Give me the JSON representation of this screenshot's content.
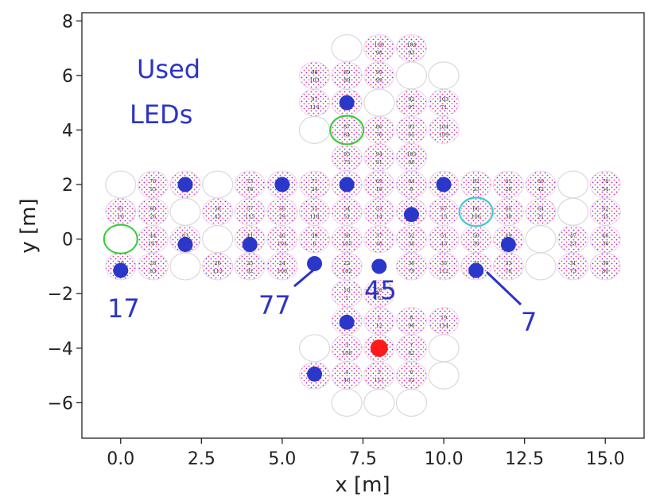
{
  "chart_data": {
    "type": "scatter",
    "title": "",
    "xlabel": "x [m]",
    "ylabel": "y [m]",
    "xlim": [
      -1.2,
      16.2
    ],
    "ylim": [
      -7.3,
      8.3
    ],
    "xticks": [
      0.0,
      2.5,
      5.0,
      7.5,
      10.0,
      12.5,
      15.0
    ],
    "xtick_labels": [
      "0.0",
      "2.5",
      "5.0",
      "7.5",
      "10.0",
      "12.5",
      "15.0"
    ],
    "yticks": [
      -6,
      -4,
      -2,
      0,
      2,
      4,
      6,
      8
    ],
    "ytick_labels": [
      "−6",
      "−4",
      "−2",
      "0",
      "2",
      "4",
      "6",
      "8"
    ],
    "grid": false,
    "colors": {
      "used_led": "#2a37c9",
      "red_marker": "#ff1a1a",
      "green_ring": "#33cc33",
      "cyan_ring": "#33cccc",
      "annotation": "#2b34c6",
      "empty_site": "#d9d9d9",
      "dot_purple": "#8a2be2",
      "dot_red": "#ff3366"
    },
    "labeled_sites": [
      {
        "x": 8,
        "y": 7,
        "top": "100",
        "bottom": "98"
      },
      {
        "x": 9,
        "y": 7,
        "top": "104",
        "bottom": "93"
      },
      {
        "x": 6,
        "y": 6,
        "top": "98",
        "bottom": "103"
      },
      {
        "x": 7,
        "y": 6,
        "top": "89",
        "bottom": "89"
      },
      {
        "x": 8,
        "y": 6,
        "top": "99",
        "bottom": "99"
      },
      {
        "x": 6,
        "y": 5,
        "top": "97",
        "bottom": "114"
      },
      {
        "x": 7,
        "y": 5,
        "top": "",
        "bottom": ""
      },
      {
        "x": 9,
        "y": 5,
        "top": "92",
        "bottom": "97"
      },
      {
        "x": 10,
        "y": 5,
        "top": "103",
        "bottom": "71"
      },
      {
        "x": 7,
        "y": 4,
        "top": "87",
        "bottom": "84"
      },
      {
        "x": 8,
        "y": 4,
        "top": "86",
        "bottom": "76"
      },
      {
        "x": 9,
        "y": 4,
        "top": "93",
        "bottom": "65"
      },
      {
        "x": 10,
        "y": 4,
        "top": "104",
        "bottom": "109"
      },
      {
        "x": 7,
        "y": 3,
        "top": "95",
        "bottom": "73"
      },
      {
        "x": 8,
        "y": 3,
        "top": "94",
        "bottom": "91"
      },
      {
        "x": 9,
        "y": 3,
        "top": "105",
        "bottom": "86"
      },
      {
        "x": 1,
        "y": 2,
        "top": "76",
        "bottom": "55"
      },
      {
        "x": 2,
        "y": 2,
        "top": "",
        "bottom": ""
      },
      {
        "x": 4,
        "y": 2,
        "top": "73",
        "bottom": "16"
      },
      {
        "x": 5,
        "y": 2,
        "top": "",
        "bottom": ""
      },
      {
        "x": 6,
        "y": 2,
        "top": "71",
        "bottom": "24"
      },
      {
        "x": 7,
        "y": 2,
        "top": "",
        "bottom": ""
      },
      {
        "x": 8,
        "y": 2,
        "top": "69",
        "bottom": "18"
      },
      {
        "x": 9,
        "y": 2,
        "top": "84",
        "bottom": "8"
      },
      {
        "x": 10,
        "y": 2,
        "top": "",
        "bottom": ""
      },
      {
        "x": 11,
        "y": 2,
        "top": "82",
        "bottom": "23"
      },
      {
        "x": 12,
        "y": 2,
        "top": "81",
        "bottom": "20"
      },
      {
        "x": 13,
        "y": 2,
        "top": "80",
        "bottom": "42"
      },
      {
        "x": 15,
        "y": 2,
        "top": "78",
        "bottom": "54"
      },
      {
        "x": 0,
        "y": 1,
        "top": "61",
        "bottom": "10"
      },
      {
        "x": 1,
        "y": 1,
        "top": "60",
        "bottom": "26"
      },
      {
        "x": 3,
        "y": 1,
        "top": "58",
        "bottom": "45"
      },
      {
        "x": 4,
        "y": 1,
        "top": "57",
        "bottom": "115"
      },
      {
        "x": 5,
        "y": 1,
        "top": "56",
        "bottom": "29"
      },
      {
        "x": 6,
        "y": 1,
        "top": "55",
        "bottom": "118"
      },
      {
        "x": 7,
        "y": 1,
        "top": "54",
        "bottom": "51"
      },
      {
        "x": 8,
        "y": 1,
        "top": "53",
        "bottom": "14"
      },
      {
        "x": 9,
        "y": 1,
        "top": "",
        "bottom": ""
      },
      {
        "x": 10,
        "y": 1,
        "top": "67",
        "bottom": "13"
      },
      {
        "x": 11,
        "y": 1,
        "top": "66",
        "bottom": "106"
      },
      {
        "x": 12,
        "y": 1,
        "top": "65",
        "bottom": "38"
      },
      {
        "x": 13,
        "y": 1,
        "top": "64",
        "bottom": "21"
      },
      {
        "x": 15,
        "y": 1,
        "top": "62",
        "bottom": "35"
      },
      {
        "x": 1,
        "y": 0,
        "top": "44",
        "bottom": "107"
      },
      {
        "x": 2,
        "y": 0,
        "top": "43",
        "bottom": ""
      },
      {
        "x": 4,
        "y": 0,
        "top": "41",
        "bottom": ""
      },
      {
        "x": 5,
        "y": 0,
        "top": "40",
        "bottom": "104"
      },
      {
        "x": 6,
        "y": 0,
        "top": "39",
        "bottom": "6"
      },
      {
        "x": 7,
        "y": 0,
        "top": "38",
        "bottom": "105"
      },
      {
        "x": 8,
        "y": 0,
        "top": "37",
        "bottom": "48"
      },
      {
        "x": 9,
        "y": 0,
        "top": "52",
        "bottom": "30"
      },
      {
        "x": 10,
        "y": 0,
        "top": "51",
        "bottom": "43"
      },
      {
        "x": 11,
        "y": 0,
        "top": "50",
        "bottom": "39"
      },
      {
        "x": 12,
        "y": 0,
        "top": "49",
        "bottom": ""
      },
      {
        "x": 14,
        "y": 0,
        "top": "47",
        "bottom": "23"
      },
      {
        "x": 15,
        "y": 0,
        "top": "46",
        "bottom": "36"
      },
      {
        "x": 0,
        "y": -1,
        "top": "29",
        "bottom": ""
      },
      {
        "x": 1,
        "y": -1,
        "top": "28",
        "bottom": "83"
      },
      {
        "x": 3,
        "y": -1,
        "top": "26",
        "bottom": "113"
      },
      {
        "x": 4,
        "y": -1,
        "top": "25",
        "bottom": "92"
      },
      {
        "x": 5,
        "y": -1,
        "top": "24",
        "bottom": "100"
      },
      {
        "x": 7,
        "y": -1,
        "top": "22",
        "bottom": "102"
      },
      {
        "x": 9,
        "y": -1,
        "top": "36",
        "bottom": "79"
      },
      {
        "x": 10,
        "y": -1,
        "top": "35",
        "bottom": "112"
      },
      {
        "x": 11,
        "y": -1,
        "top": "34",
        "bottom": ""
      },
      {
        "x": 12,
        "y": -1,
        "top": "33",
        "bottom": "78"
      },
      {
        "x": 14,
        "y": -1,
        "top": "31",
        "bottom": "73"
      },
      {
        "x": 15,
        "y": -1,
        "top": "30",
        "bottom": "80"
      },
      {
        "x": 7,
        "y": -2,
        "top": "10",
        "bottom": "1"
      },
      {
        "x": 8,
        "y": -2,
        "top": "20",
        "bottom": "101"
      },
      {
        "x": 7,
        "y": -3,
        "top": "11",
        "bottom": "94"
      },
      {
        "x": 8,
        "y": -3,
        "top": "1",
        "bottom": "12"
      },
      {
        "x": 9,
        "y": -3,
        "top": "8",
        "bottom": "96"
      },
      {
        "x": 10,
        "y": -3,
        "top": "19",
        "bottom": "114"
      },
      {
        "x": 7,
        "y": -4,
        "top": "3",
        "bottom": "108"
      },
      {
        "x": 8,
        "y": -4,
        "top": "",
        "bottom": ""
      },
      {
        "x": 9,
        "y": -4,
        "top": "7",
        "bottom": "82"
      },
      {
        "x": 6,
        "y": -5,
        "top": "",
        "bottom": ""
      },
      {
        "x": 7,
        "y": -5,
        "top": "4",
        "bottom": "46"
      },
      {
        "x": 8,
        "y": -5,
        "top": "5",
        "bottom": "117"
      },
      {
        "x": 9,
        "y": -5,
        "top": "6",
        "bottom": "52"
      }
    ],
    "empty_sites": [
      {
        "x": 7,
        "y": 7
      },
      {
        "x": 9,
        "y": 6
      },
      {
        "x": 10,
        "y": 6
      },
      {
        "x": 8,
        "y": 5
      },
      {
        "x": 6,
        "y": 4
      },
      {
        "x": 0,
        "y": 2
      },
      {
        "x": 3,
        "y": 2
      },
      {
        "x": 14,
        "y": 2
      },
      {
        "x": 2,
        "y": 1
      },
      {
        "x": 14,
        "y": 1
      },
      {
        "x": 3,
        "y": 0
      },
      {
        "x": 13,
        "y": 0
      },
      {
        "x": 2,
        "y": -1
      },
      {
        "x": 13,
        "y": -1
      },
      {
        "x": 6,
        "y": -4
      },
      {
        "x": 10,
        "y": -4
      },
      {
        "x": 10,
        "y": -5
      },
      {
        "x": 7,
        "y": -6
      },
      {
        "x": 8,
        "y": -6
      },
      {
        "x": 9,
        "y": -6
      }
    ],
    "used_leds": [
      {
        "x": 7,
        "y": 5
      },
      {
        "x": 2,
        "y": 2
      },
      {
        "x": 5,
        "y": 2
      },
      {
        "x": 7,
        "y": 2
      },
      {
        "x": 10,
        "y": 2
      },
      {
        "x": 9,
        "y": 0.9
      },
      {
        "x": 2,
        "y": -0.2
      },
      {
        "x": 4,
        "y": -0.2
      },
      {
        "x": 12,
        "y": -0.2
      },
      {
        "x": 0,
        "y": -1.15
      },
      {
        "x": 6,
        "y": -0.9
      },
      {
        "x": 8,
        "y": -1
      },
      {
        "x": 11,
        "y": -1.15
      },
      {
        "x": 7,
        "y": -3.05
      },
      {
        "x": 6,
        "y": -4.95
      }
    ],
    "red_marker": {
      "x": 8,
      "y": -4
    },
    "highlight_rings": [
      {
        "x": 0,
        "y": 0,
        "color": "green"
      },
      {
        "x": 7,
        "y": 4,
        "color": "green"
      },
      {
        "x": 11,
        "y": 1,
        "color": "cyan"
      }
    ],
    "annotations": {
      "title_line1": "Used",
      "title_line2": "LEDs",
      "label_17": "17",
      "label_77": "77",
      "label_45": "45",
      "label_7": "7"
    }
  }
}
